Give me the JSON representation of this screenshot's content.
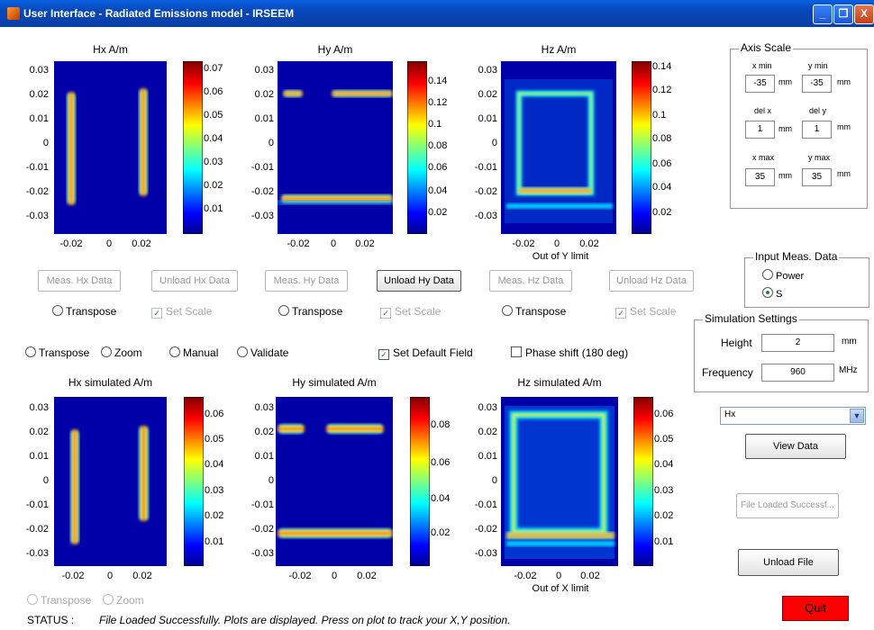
{
  "window": {
    "title": "User Interface - Radiated Emissions model - IRSEEM",
    "min": "_",
    "max": "❐",
    "close": "X"
  },
  "plots_top": [
    {
      "title": "Hx A/m",
      "yticks": [
        "0.03",
        "0.02",
        "0.01",
        "0",
        "-0.01",
        "-0.02",
        "-0.03"
      ],
      "xticks": [
        "-0.02",
        "0",
        "0.02"
      ],
      "cbticks": [
        "0.07",
        "0.06",
        "0.05",
        "0.04",
        "0.03",
        "0.02",
        "0.01"
      ],
      "note": ""
    },
    {
      "title": "Hy A/m",
      "yticks": [
        "0.03",
        "0.02",
        "0.01",
        "0",
        "-0.01",
        "-0.02",
        "-0.03"
      ],
      "xticks": [
        "-0.02",
        "0",
        "0.02"
      ],
      "cbticks": [
        "0.14",
        "0.12",
        "0.1",
        "0.08",
        "0.06",
        "0.04",
        "0.02"
      ],
      "note": ""
    },
    {
      "title": "Hz A/m",
      "yticks": [
        "0.03",
        "0.02",
        "0.01",
        "0",
        "-0.01",
        "-0.02",
        "-0.03"
      ],
      "xticks": [
        "-0.02",
        "0",
        "0.02"
      ],
      "cbticks": [
        "0.14",
        "0.12",
        "0.1",
        "0.08",
        "0.06",
        "0.04",
        "0.02"
      ],
      "note": "Out of Y limit"
    }
  ],
  "plots_bottom": [
    {
      "title": "Hx simulated A/m",
      "yticks": [
        "0.03",
        "0.02",
        "0.01",
        "0",
        "-0.01",
        "-0.02",
        "-0.03"
      ],
      "xticks": [
        "-0.02",
        "0",
        "0.02"
      ],
      "cbticks": [
        "0.06",
        "0.05",
        "0.04",
        "0.03",
        "0.02",
        "0.01"
      ],
      "note": ""
    },
    {
      "title": "Hy simulated A/m",
      "yticks": [
        "0.03",
        "0.02",
        "0.01",
        "0",
        "-0.01",
        "-0.02",
        "-0.03"
      ],
      "xticks": [
        "-0.02",
        "0",
        "0.02"
      ],
      "cbticks": [
        "0.08",
        "0.06",
        "0.04",
        "0.02"
      ],
      "note": ""
    },
    {
      "title": "Hz simulated A/m",
      "yticks": [
        "0.03",
        "0.02",
        "0.01",
        "0",
        "-0.01",
        "-0.02",
        "-0.03"
      ],
      "xticks": [
        "-0.02",
        "0",
        "0.02"
      ],
      "cbticks": [
        "0.06",
        "0.05",
        "0.04",
        "0.03",
        "0.02",
        "0.01"
      ],
      "note": "Out of X limit"
    }
  ],
  "buttons_top": {
    "meas_hx": "Meas. Hx Data",
    "unload_hx": "Unload Hx Data",
    "meas_hy": "Meas. Hy Data",
    "unload_hy": "Unload Hy Data",
    "meas_hz": "Meas. Hz Data",
    "unload_hz": "Unload Hz Data"
  },
  "options_top": {
    "transpose": "Transpose",
    "set_scale": "Set Scale"
  },
  "options_mid": {
    "transpose": "Transpose",
    "zoom": "Zoom",
    "manual": "Manual",
    "validate": "Validate",
    "set_default_field": "Set Default Field",
    "phase_shift": "Phase shift (180 deg)"
  },
  "options_bottom": {
    "transpose": "Transpose",
    "zoom": "Zoom"
  },
  "axis_scale": {
    "title": "Axis Scale",
    "xmin_label": "x min",
    "xmin": "-35",
    "ymin_label": "y min",
    "ymin": "-35",
    "delx_label": "del x",
    "delx": "1",
    "dely_label": "del y",
    "dely": "1",
    "xmax_label": "x max",
    "xmax": "35",
    "ymax_label": "y max",
    "ymax": "35",
    "unit": "mm"
  },
  "input_meas": {
    "title": "Input Meas. Data",
    "power": "Power",
    "s": "S"
  },
  "simulation": {
    "title": "Simulation Settings",
    "height_label": "Height",
    "height": "2",
    "height_unit": "mm",
    "freq_label": "Frequency",
    "freq": "960",
    "freq_unit": "MHz"
  },
  "component_select": {
    "value": "Hx"
  },
  "side_buttons": {
    "view_data": "View Data",
    "file_loaded": "File Loaded Successf...",
    "unload_file": "Unload File",
    "quit": "Quit"
  },
  "status": {
    "label": "STATUS :",
    "text": "File Loaded Successfully. Plots are displayed. Press on plot to track your X,Y position."
  },
  "colors": {
    "plot_bg": "#0000a8",
    "quit_bg": "#ff0000",
    "title_bar": "#0a4fc8"
  }
}
